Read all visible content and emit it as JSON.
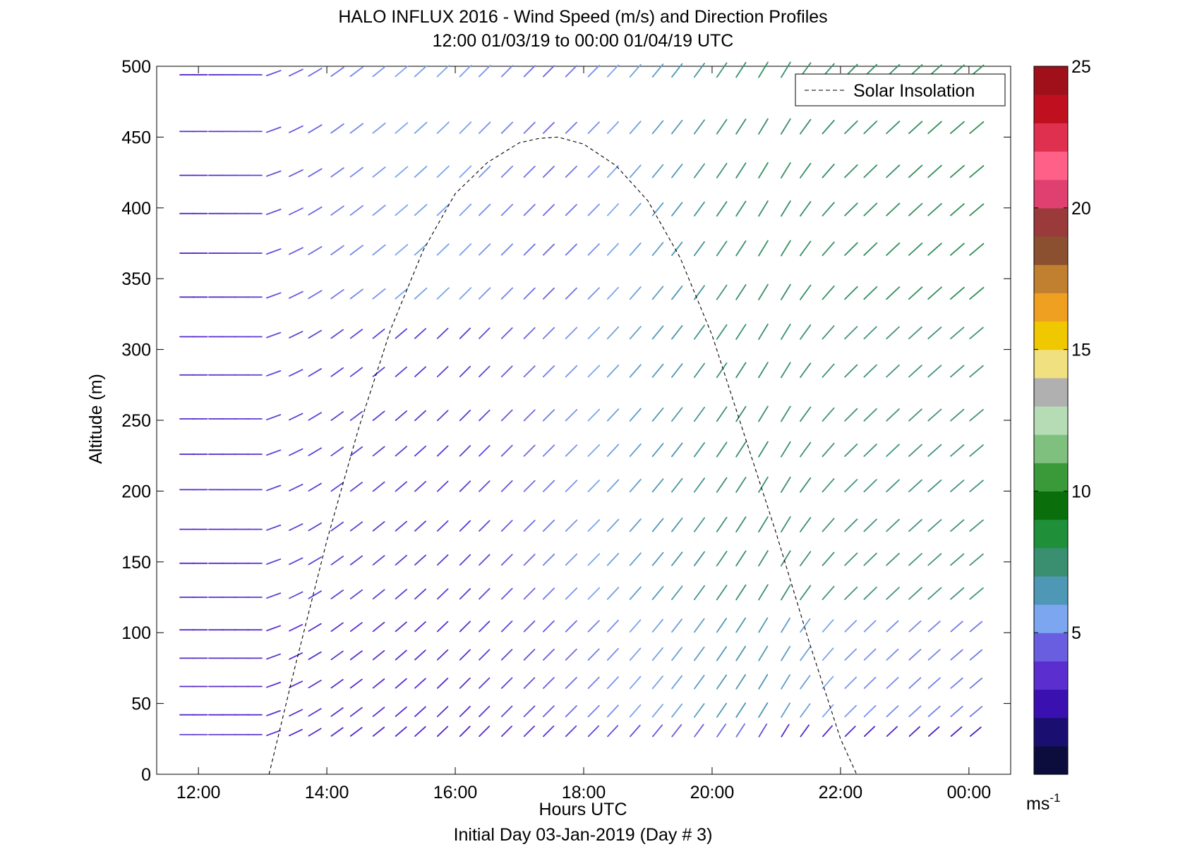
{
  "chart_data": {
    "type": "wind-barb-profile",
    "title": "HALO INFLUX 2016 - Wind Speed (m/s) and Direction Profiles",
    "subtitle": "12:00 01/03/19 to 00:00 01/04/19  UTC",
    "xlabel": "Hours UTC",
    "footer": "Initial Day 03-Jan-2019 (Day # 3)",
    "ylabel": "Altitude (m)",
    "xlim": [
      11.35,
      24.65
    ],
    "ylim": [
      0,
      500
    ],
    "xticks": [
      12,
      14,
      16,
      18,
      20,
      22,
      24
    ],
    "xtick_labels": [
      "12:00",
      "14:00",
      "16:00",
      "18:00",
      "20:00",
      "22:00",
      "00:00"
    ],
    "yticks": [
      0,
      50,
      100,
      150,
      200,
      250,
      300,
      350,
      400,
      450,
      500
    ],
    "ytick_labels": [
      "0",
      "50",
      "100",
      "150",
      "200",
      "250",
      "300",
      "350",
      "400",
      "450",
      "500"
    ],
    "legend": {
      "label": "Solar Insolation",
      "placement": "top-right"
    },
    "colorbar": {
      "range": [
        0,
        25
      ],
      "ticks": [
        5,
        10,
        15,
        20,
        25
      ],
      "tick_labels": [
        "5",
        "10",
        "15",
        "20",
        "25"
      ],
      "unit_label": "ms",
      "unit_exponent": "-1",
      "colors": [
        "#0d0d3d",
        "#1a0f70",
        "#3a10b0",
        "#5b2ed0",
        "#6a5ee0",
        "#7da6f0",
        "#4e97b5",
        "#3a8f70",
        "#1f8f3a",
        "#0a6f0a",
        "#3a9a3a",
        "#7fc07f",
        "#b5dcb5",
        "#b0b0b0",
        "#f0e080",
        "#f0c800",
        "#f0a020",
        "#c08030",
        "#8a5030",
        "#9a3a3a",
        "#e04070",
        "#ff6088",
        "#e03050",
        "#c01020",
        "#a0101a"
      ]
    },
    "solar_insolation": {
      "style": "dashed",
      "color": "#000000",
      "x": [
        13.1,
        13.5,
        14.0,
        14.5,
        15.0,
        15.5,
        16.0,
        16.5,
        17.0,
        17.3,
        17.6,
        18.0,
        18.5,
        19.0,
        19.5,
        20.0,
        20.5,
        21.0,
        21.5,
        22.0,
        22.25
      ],
      "y": [
        0,
        75,
        165,
        245,
        315,
        370,
        410,
        432,
        446,
        449,
        450,
        445,
        430,
        405,
        365,
        310,
        240,
        170,
        95,
        25,
        0
      ]
    },
    "times": [
      11.75,
      11.95,
      12.2,
      12.4,
      12.6,
      12.8,
      13.1,
      13.45,
      13.75,
      14.1,
      14.4,
      14.75,
      15.1,
      15.4,
      15.75,
      16.1,
      16.4,
      16.75,
      17.1,
      17.4,
      17.75,
      18.1,
      18.4,
      18.75,
      19.1,
      19.4,
      19.75,
      20.1,
      20.4,
      20.75,
      21.1,
      21.4,
      21.75,
      22.1,
      22.4,
      22.75,
      23.1,
      23.4,
      23.75,
      24.05
    ],
    "altitudes": [
      28,
      42,
      62,
      82,
      102,
      125,
      149,
      173,
      201,
      226,
      251,
      282,
      309,
      337,
      368,
      396,
      423,
      454,
      494
    ],
    "speed_levels": [
      {
        "altitude_max": 40,
        "speeds_by_hour": [
          [
            12,
            3.5
          ],
          [
            13.3,
            3.0
          ],
          [
            16,
            2.8
          ],
          [
            20.5,
            4.5
          ],
          [
            21,
            3.0
          ],
          [
            24.1,
            2.5
          ]
        ]
      },
      {
        "altitude_max": 120,
        "speeds_by_hour": [
          [
            12,
            3.0
          ],
          [
            13.3,
            3.2
          ],
          [
            16,
            3.0
          ],
          [
            20.5,
            6.5
          ],
          [
            22,
            5.0
          ],
          [
            24.1,
            4.5
          ]
        ]
      },
      {
        "altitude_max": 330,
        "speeds_by_hour": [
          [
            12,
            3.0
          ],
          [
            13.3,
            3.6
          ],
          [
            16,
            3.3
          ],
          [
            20.5,
            7.5
          ],
          [
            22,
            7.0
          ],
          [
            24.1,
            7.0
          ]
        ]
      },
      {
        "altitude_max": 500,
        "speeds_by_hour": [
          [
            12,
            3.0
          ],
          [
            13.3,
            4.0
          ],
          [
            15.5,
            5.5
          ],
          [
            17.5,
            4.2
          ],
          [
            20.5,
            7.5
          ],
          [
            22,
            7.5
          ],
          [
            24.1,
            7.8
          ]
        ]
      }
    ],
    "wind_direction_deg": {
      "before_13h": 270,
      "after_13h_note": "",
      "by_hour": [
        [
          13.1,
          250
        ],
        [
          14,
          235
        ],
        [
          16,
          225
        ],
        [
          18,
          225
        ],
        [
          20,
          215
        ],
        [
          21,
          210
        ],
        [
          22,
          225
        ],
        [
          24.1,
          230
        ]
      ]
    },
    "grid": false
  }
}
